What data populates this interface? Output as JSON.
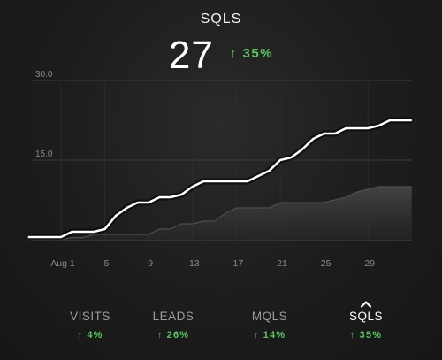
{
  "header": {
    "metric_title": "SQLS",
    "value": "27",
    "change": "↑ 35%"
  },
  "chart_data": {
    "type": "area",
    "title": "",
    "xlabel": "",
    "ylabel": "",
    "ylim": [
      0,
      30
    ],
    "y_ticks": [
      "15.0",
      "30.0"
    ],
    "x_ticks": [
      "Aug 1",
      "5",
      "9",
      "13",
      "17",
      "21",
      "25",
      "29"
    ],
    "x": [
      -2,
      -1,
      0,
      1,
      2,
      3,
      4,
      5,
      6,
      7,
      8,
      9,
      10,
      11,
      12,
      13,
      14,
      15,
      16,
      17,
      18,
      19,
      20,
      21,
      22,
      23,
      24,
      25,
      26,
      27,
      28,
      29,
      30,
      31,
      32,
      33
    ],
    "grid": true,
    "series": [
      {
        "color": "#ffffff",
        "values": [
          0.5,
          0.5,
          0.5,
          0.5,
          1.5,
          1.5,
          1.5,
          2,
          4.5,
          6,
          7,
          7,
          8,
          8,
          8.5,
          10,
          11,
          11,
          11,
          11,
          11,
          12,
          13,
          15,
          15.5,
          17,
          19,
          20,
          20,
          21,
          21,
          21,
          21.5,
          22.5,
          22.5,
          22.5
        ]
      },
      {
        "color": "#3a3a3a",
        "values": [
          0,
          0,
          0,
          0,
          0.4,
          0.4,
          1,
          1,
          1,
          1,
          1,
          1,
          2,
          2,
          3,
          3,
          3.5,
          3.5,
          5,
          6,
          6,
          6,
          6,
          7,
          7,
          7,
          7,
          7,
          7.5,
          8,
          9,
          9.5,
          10,
          10,
          10,
          10
        ]
      }
    ]
  },
  "tabs": [
    {
      "label": "VISITS",
      "change": "↑ 4%",
      "active": false
    },
    {
      "label": "LEADS",
      "change": "↑ 26%",
      "active": false
    },
    {
      "label": "MQLS",
      "change": "↑ 14%",
      "active": false
    },
    {
      "label": "SQLS",
      "change": "↑ 35%",
      "active": true
    }
  ],
  "colors": {
    "positive": "#58c65a",
    "background": "#1a1a1a"
  }
}
